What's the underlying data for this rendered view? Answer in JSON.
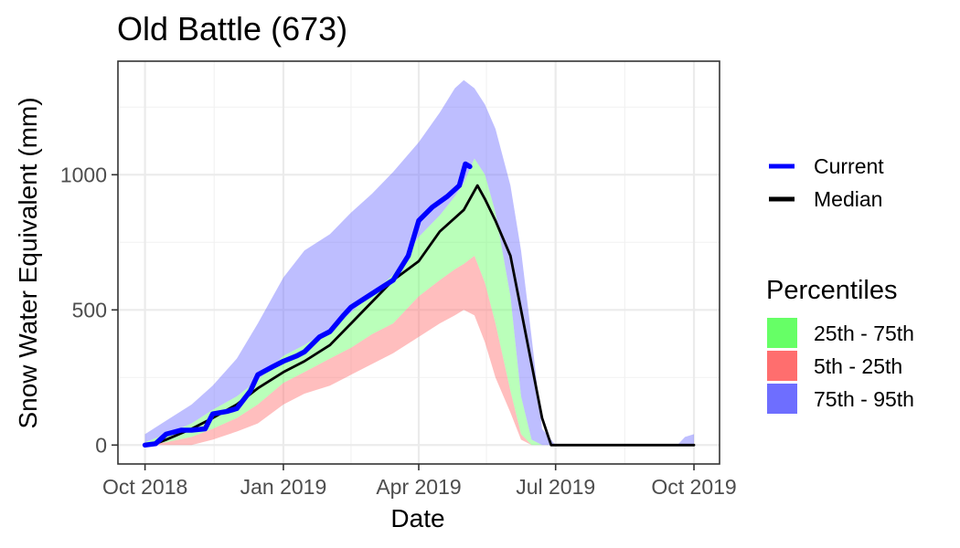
{
  "chart_data": {
    "type": "area",
    "title": "Old Battle (673)",
    "xlabel": "Date",
    "ylabel": "Snow Water Equivalent (mm)",
    "x_ticks": [
      "2018-10-01",
      "2019-01-01",
      "2019-04-01",
      "2019-07-01",
      "2019-10-01"
    ],
    "x_tick_labels": [
      "Oct 2018",
      "Jan 2019",
      "Apr 2019",
      "Jul 2019",
      "Oct 2019"
    ],
    "y_ticks": [
      0,
      500,
      1000
    ],
    "y_tick_labels": [
      "0",
      "500",
      "1000"
    ],
    "xlim": [
      "2018-09-13",
      "2019-10-18"
    ],
    "ylim": [
      -70,
      1420
    ],
    "grid": true,
    "legend_position": "right",
    "legend_lines": [
      {
        "name": "Current",
        "color": "#0000ff"
      },
      {
        "name": "Median",
        "color": "#000000"
      }
    ],
    "legend_title": "Percentiles",
    "legend_fills": [
      {
        "name": "25th - 75th",
        "color": "#66ff66"
      },
      {
        "name": "5th - 25th",
        "color": "#ff6e6e"
      },
      {
        "name": "75th - 95th",
        "color": "#6e6eff"
      }
    ],
    "percentile_band_dates": [
      "2018-10-01",
      "2018-10-15",
      "2018-11-01",
      "2018-11-15",
      "2018-12-01",
      "2018-12-15",
      "2019-01-01",
      "2019-01-15",
      "2019-02-01",
      "2019-02-15",
      "2019-03-01",
      "2019-03-15",
      "2019-04-01",
      "2019-04-15",
      "2019-04-25",
      "2019-05-01",
      "2019-05-08",
      "2019-05-15",
      "2019-05-22",
      "2019-06-01",
      "2019-06-08",
      "2019-06-15",
      "2019-06-22",
      "2019-07-01",
      "2019-07-08",
      "2019-07-15",
      "2019-08-01",
      "2019-09-01",
      "2019-09-20",
      "2019-09-25",
      "2019-10-01"
    ],
    "p5": [
      0,
      0,
      0,
      20,
      50,
      80,
      150,
      190,
      220,
      260,
      300,
      340,
      400,
      450,
      480,
      500,
      480,
      380,
      250,
      120,
      20,
      0,
      0,
      0,
      0,
      0,
      0,
      0,
      0,
      0,
      0
    ],
    "p25": [
      0,
      10,
      30,
      60,
      100,
      150,
      230,
      270,
      320,
      360,
      410,
      450,
      550,
      610,
      650,
      670,
      700,
      600,
      450,
      200,
      40,
      0,
      0,
      0,
      0,
      0,
      0,
      0,
      0,
      0,
      0
    ],
    "p75": [
      10,
      40,
      80,
      130,
      180,
      240,
      330,
      370,
      430,
      490,
      560,
      630,
      770,
      850,
      920,
      970,
      1060,
      1000,
      860,
      550,
      180,
      20,
      0,
      0,
      0,
      0,
      0,
      0,
      0,
      0,
      0
    ],
    "p95": [
      40,
      90,
      150,
      220,
      320,
      450,
      620,
      720,
      780,
      860,
      930,
      1010,
      1120,
      1230,
      1320,
      1350,
      1320,
      1260,
      1170,
      960,
      720,
      400,
      60,
      0,
      0,
      0,
      0,
      0,
      0,
      30,
      40
    ],
    "median": {
      "dates": [
        "2018-10-01",
        "2018-10-08",
        "2018-10-15",
        "2018-11-01",
        "2018-11-15",
        "2018-12-01",
        "2018-12-15",
        "2019-01-01",
        "2019-01-15",
        "2019-02-01",
        "2019-02-15",
        "2019-03-01",
        "2019-03-15",
        "2019-04-01",
        "2019-04-15",
        "2019-05-01",
        "2019-05-10",
        "2019-05-15",
        "2019-05-22",
        "2019-06-01",
        "2019-06-08",
        "2019-06-15",
        "2019-06-22",
        "2019-06-28",
        "2019-07-15",
        "2019-10-01"
      ],
      "values": [
        0,
        5,
        20,
        60,
        100,
        150,
        210,
        270,
        310,
        370,
        450,
        530,
        610,
        680,
        790,
        870,
        960,
        910,
        830,
        700,
        500,
        300,
        100,
        0,
        0,
        0
      ]
    },
    "current": {
      "dates": [
        "2018-10-01",
        "2018-10-08",
        "2018-10-15",
        "2018-10-25",
        "2018-11-01",
        "2018-11-10",
        "2018-11-15",
        "2018-11-25",
        "2018-12-01",
        "2018-12-10",
        "2018-12-15",
        "2018-12-25",
        "2019-01-01",
        "2019-01-10",
        "2019-01-15",
        "2019-01-25",
        "2019-02-01",
        "2019-02-10",
        "2019-02-15",
        "2019-03-01",
        "2019-03-15",
        "2019-03-25",
        "2019-04-01",
        "2019-04-10",
        "2019-04-20",
        "2019-04-28",
        "2019-05-02",
        "2019-05-05"
      ],
      "values": [
        0,
        5,
        40,
        55,
        55,
        60,
        115,
        125,
        135,
        200,
        260,
        290,
        310,
        330,
        345,
        400,
        420,
        480,
        510,
        560,
        610,
        700,
        830,
        880,
        920,
        960,
        1040,
        1030
      ]
    }
  }
}
